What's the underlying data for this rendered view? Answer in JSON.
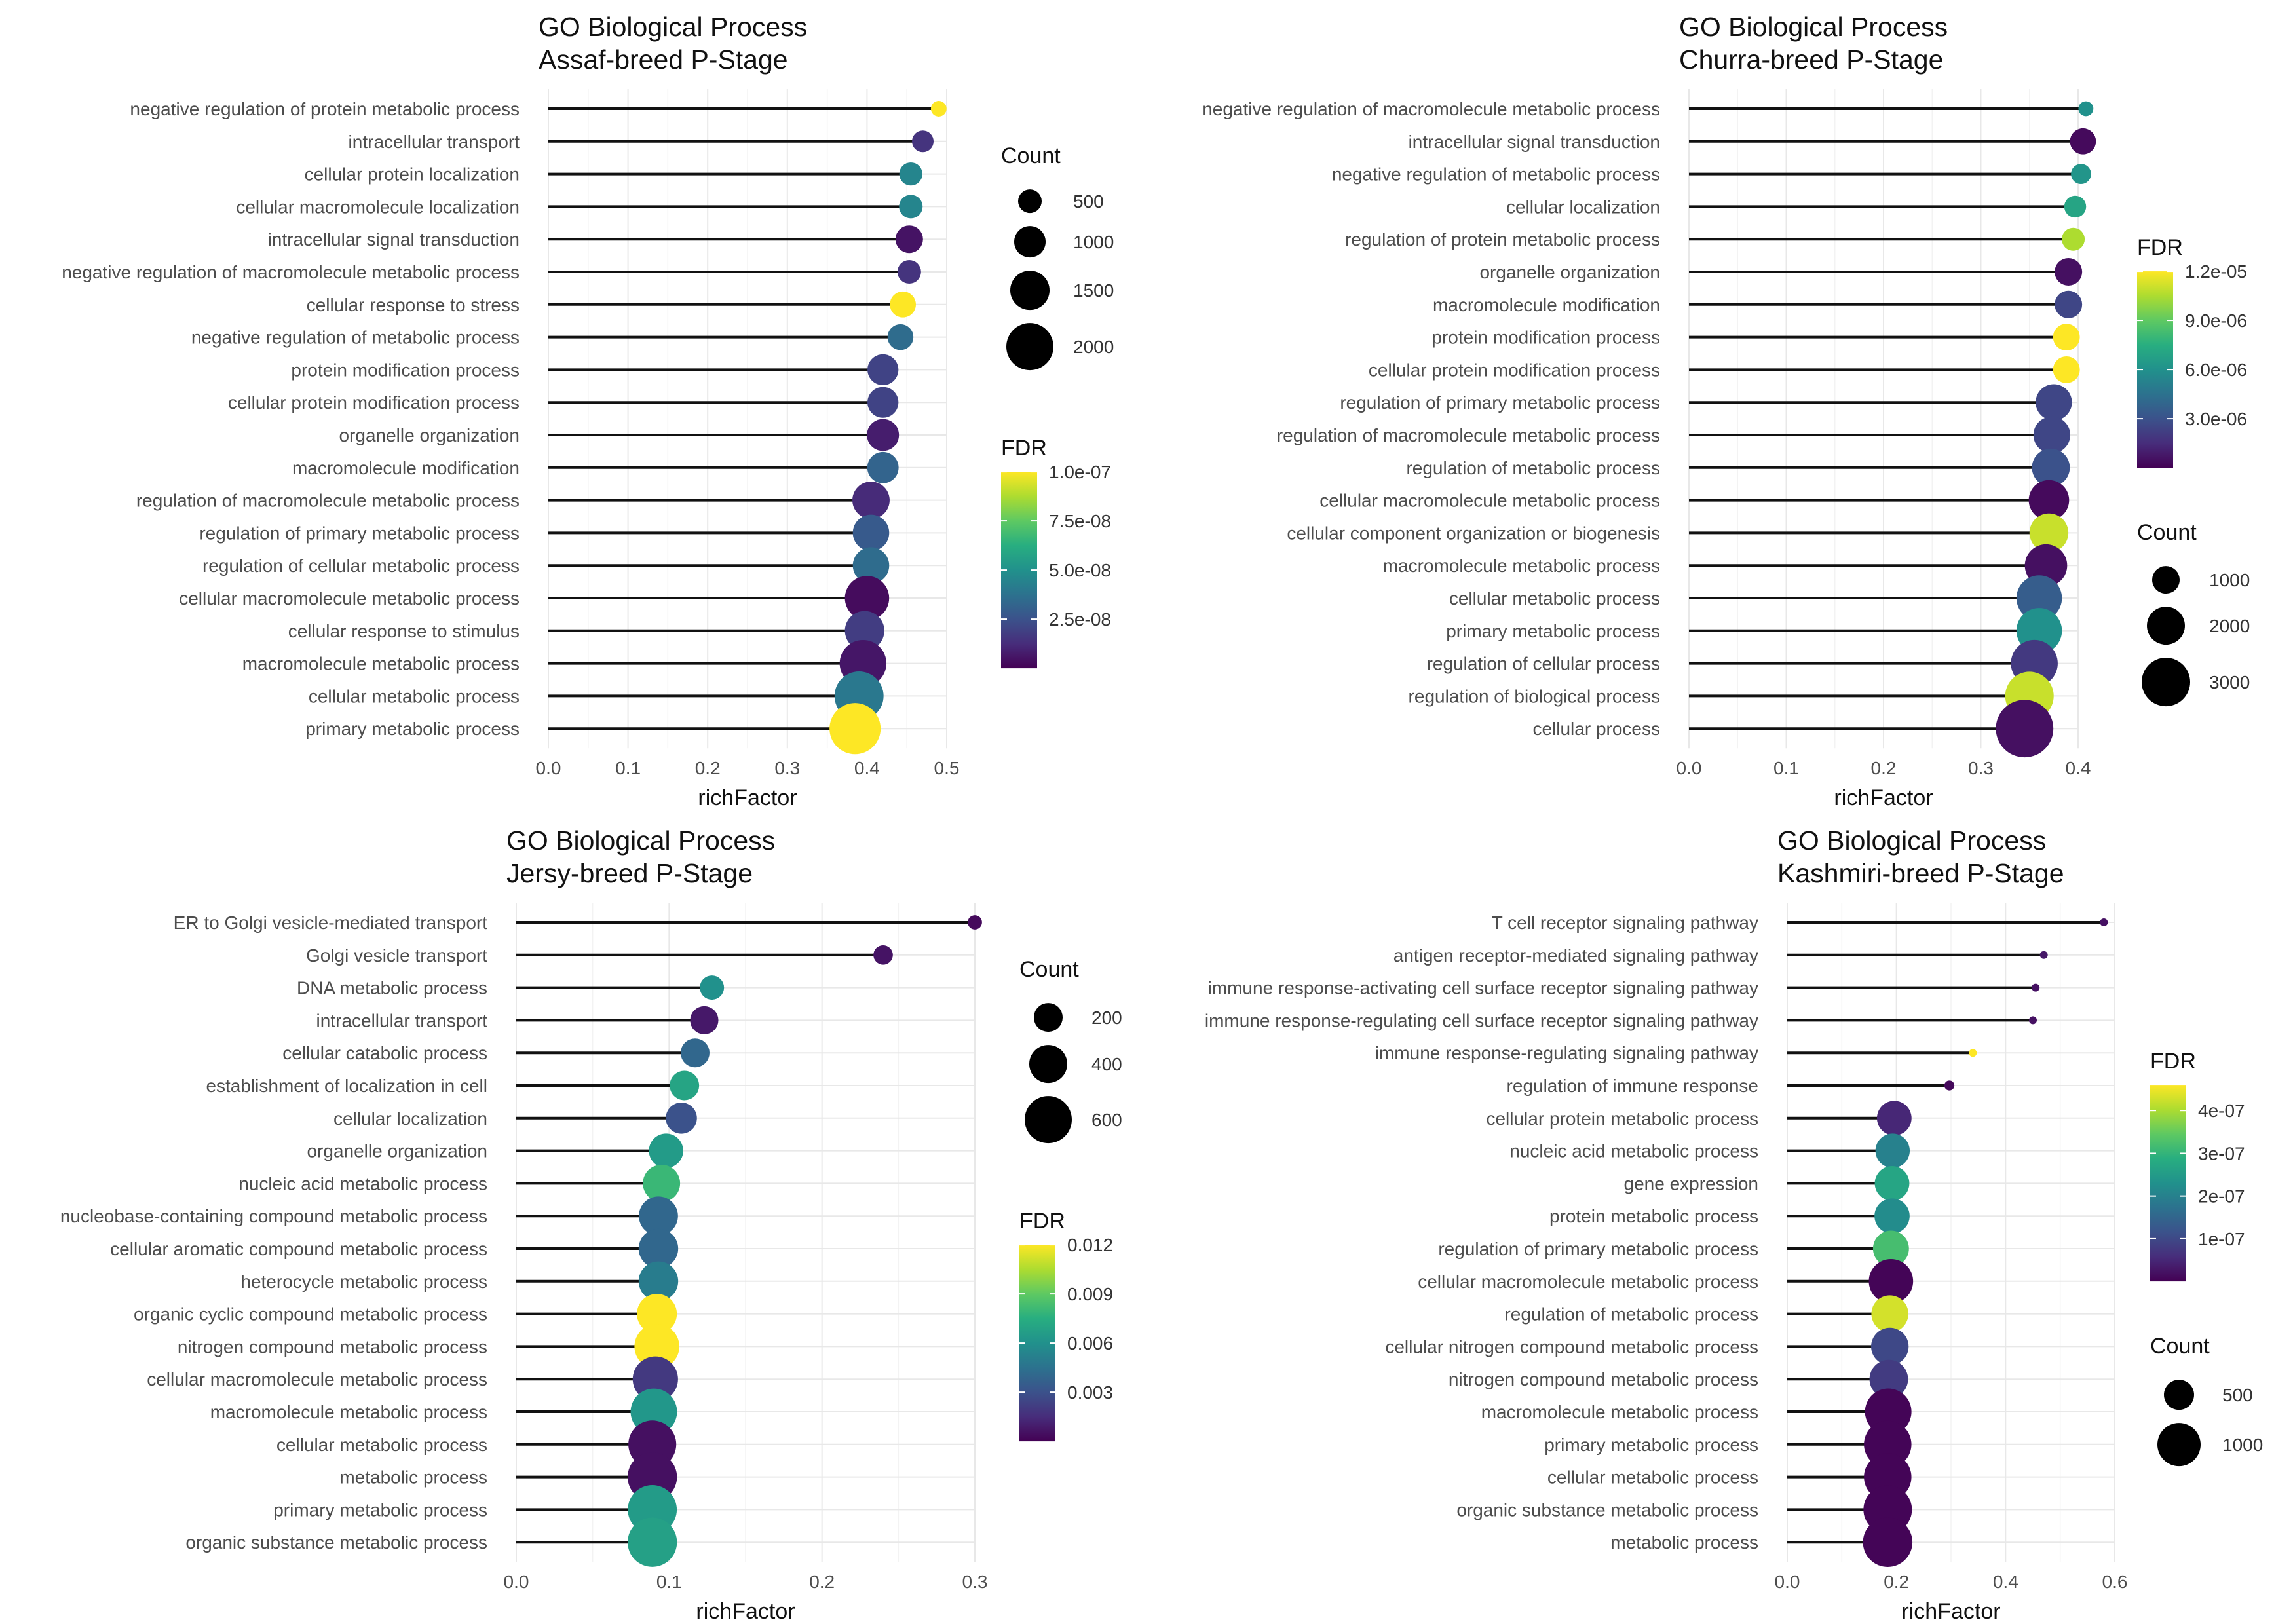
{
  "figure": {
    "panels_label": "GO enrichment lollipop charts"
  },
  "chart_data": [
    {
      "type": "scatter",
      "subtype": "lollipop",
      "title": "GO Biological Process",
      "subtitle": "Assaf-breed P-Stage",
      "xlabel": "richFactor",
      "ylabel": "",
      "xlim": [
        0,
        0.5
      ],
      "xticks": [
        "0.0",
        "0.1",
        "0.2",
        "0.3",
        "0.4",
        "0.5"
      ],
      "legend_order": "count-first",
      "count_legend": {
        "title": "Count",
        "values": [
          500,
          1000,
          1500,
          2000
        ],
        "labels": [
          "500",
          "1000",
          "1500",
          "2000"
        ]
      },
      "fdr_legend": {
        "title": "FDR",
        "min": 0,
        "max": 1e-07,
        "ticks": [
          2.5e-08,
          5e-08,
          7.5e-08,
          1e-07
        ],
        "labels": [
          "2.5e-08",
          "5.0e-08",
          "7.5e-08",
          "1.0e-07"
        ]
      },
      "terms": [
        {
          "term": "negative regulation of protein metabolic process",
          "richFactor": 0.49,
          "count": 220,
          "fdr": 1e-07
        },
        {
          "term": "intracellular transport",
          "richFactor": 0.47,
          "count": 420,
          "fdr": 1.5e-08
        },
        {
          "term": "cellular protein localization",
          "richFactor": 0.455,
          "count": 480,
          "fdr": 4.5e-08
        },
        {
          "term": "cellular macromolecule localization",
          "richFactor": 0.455,
          "count": 500,
          "fdr": 4.5e-08
        },
        {
          "term": "intracellular signal transduction",
          "richFactor": 0.453,
          "count": 680,
          "fdr": 5e-09
        },
        {
          "term": "negative regulation of macromolecule metabolic process",
          "richFactor": 0.453,
          "count": 500,
          "fdr": 1.5e-08
        },
        {
          "term": "cellular response to stress",
          "richFactor": 0.445,
          "count": 610,
          "fdr": 1e-07
        },
        {
          "term": "negative regulation of metabolic process",
          "richFactor": 0.442,
          "count": 600,
          "fdr": 3.5e-08
        },
        {
          "term": "protein modification process",
          "richFactor": 0.42,
          "count": 860,
          "fdr": 2e-08
        },
        {
          "term": "cellular protein modification process",
          "richFactor": 0.42,
          "count": 860,
          "fdr": 2e-08
        },
        {
          "term": "organelle organization",
          "richFactor": 0.42,
          "count": 920,
          "fdr": 8e-09
        },
        {
          "term": "macromolecule modification",
          "richFactor": 0.42,
          "count": 880,
          "fdr": 3.2e-08
        },
        {
          "term": "regulation of macromolecule metabolic process",
          "richFactor": 0.405,
          "count": 1250,
          "fdr": 1.2e-08
        },
        {
          "term": "regulation of primary metabolic process",
          "richFactor": 0.405,
          "count": 1190,
          "fdr": 2.8e-08
        },
        {
          "term": "regulation of cellular metabolic process",
          "richFactor": 0.405,
          "count": 1190,
          "fdr": 3.5e-08
        },
        {
          "term": "cellular macromolecule metabolic process",
          "richFactor": 0.4,
          "count": 1760,
          "fdr": 3e-09
        },
        {
          "term": "cellular response to stimulus",
          "richFactor": 0.397,
          "count": 1400,
          "fdr": 1.8e-08
        },
        {
          "term": "macromolecule metabolic process",
          "richFactor": 0.395,
          "count": 1960,
          "fdr": 6e-09
        },
        {
          "term": "cellular metabolic process",
          "richFactor": 0.39,
          "count": 2160,
          "fdr": 4e-08
        },
        {
          "term": "primary metabolic process",
          "richFactor": 0.385,
          "count": 2350,
          "fdr": 1e-07
        }
      ]
    },
    {
      "type": "scatter",
      "subtype": "lollipop",
      "title": "GO Biological Process",
      "subtitle": "Churra-breed P-Stage",
      "xlabel": "richFactor",
      "ylabel": "",
      "xlim": [
        0,
        0.4
      ],
      "xticks": [
        "0.0",
        "0.1",
        "0.2",
        "0.3",
        "0.4"
      ],
      "legend_order": "fdr-first",
      "count_legend": {
        "title": "Count",
        "values": [
          1000,
          2000,
          3000
        ],
        "labels": [
          "1000",
          "2000",
          "3000"
        ]
      },
      "fdr_legend": {
        "title": "FDR",
        "min": 0,
        "max": 1.2e-05,
        "ticks": [
          3e-06,
          6e-06,
          9e-06,
          1.2e-05
        ],
        "labels": [
          "3.0e-06",
          "6.0e-06",
          "9.0e-06",
          "1.2e-05"
        ]
      },
      "terms": [
        {
          "term": "negative regulation of macromolecule metabolic process",
          "richFactor": 0.408,
          "count": 330,
          "fdr": 6e-06
        },
        {
          "term": "intracellular signal transduction",
          "richFactor": 0.405,
          "count": 900,
          "fdr": 3e-07
        },
        {
          "term": "negative regulation of metabolic process",
          "richFactor": 0.403,
          "count": 560,
          "fdr": 6.2e-06
        },
        {
          "term": "cellular localization",
          "richFactor": 0.397,
          "count": 650,
          "fdr": 7e-06
        },
        {
          "term": "regulation of protein metabolic process",
          "richFactor": 0.395,
          "count": 710,
          "fdr": 1.05e-05
        },
        {
          "term": "organelle organization",
          "richFactor": 0.39,
          "count": 1000,
          "fdr": 5e-07
        },
        {
          "term": "macromolecule modification",
          "richFactor": 0.39,
          "count": 1000,
          "fdr": 2.5e-06
        },
        {
          "term": "protein modification process",
          "richFactor": 0.388,
          "count": 950,
          "fdr": 1.2e-05
        },
        {
          "term": "cellular protein modification process",
          "richFactor": 0.388,
          "count": 950,
          "fdr": 1.2e-05
        },
        {
          "term": "regulation of primary metabolic process",
          "richFactor": 0.375,
          "count": 1700,
          "fdr": 2.5e-06
        },
        {
          "term": "regulation of macromolecule metabolic process",
          "richFactor": 0.373,
          "count": 1750,
          "fdr": 2.5e-06
        },
        {
          "term": "regulation of metabolic process",
          "richFactor": 0.372,
          "count": 1850,
          "fdr": 3e-06
        },
        {
          "term": "cellular macromolecule metabolic process",
          "richFactor": 0.37,
          "count": 2100,
          "fdr": 3e-07
        },
        {
          "term": "cellular component organization or biogenesis",
          "richFactor": 0.37,
          "count": 1950,
          "fdr": 1.1e-05
        },
        {
          "term": "macromolecule metabolic process",
          "richFactor": 0.367,
          "count": 2300,
          "fdr": 5e-07
        },
        {
          "term": "cellular metabolic process",
          "richFactor": 0.36,
          "count": 2650,
          "fdr": 3.5e-06
        },
        {
          "term": "primary metabolic process",
          "richFactor": 0.36,
          "count": 2650,
          "fdr": 6e-06
        },
        {
          "term": "regulation of cellular process",
          "richFactor": 0.355,
          "count": 2800,
          "fdr": 2e-06
        },
        {
          "term": "regulation of biological process",
          "richFactor": 0.35,
          "count": 3000,
          "fdr": 1.1e-05
        },
        {
          "term": "cellular process",
          "richFactor": 0.345,
          "count": 4200,
          "fdr": 5e-07
        }
      ]
    },
    {
      "type": "scatter",
      "subtype": "lollipop",
      "title": "GO Biological Process",
      "subtitle": "Jersy-breed P-Stage",
      "xlabel": "richFactor",
      "ylabel": "",
      "xlim": [
        0,
        0.3
      ],
      "xticks": [
        "0.0",
        "0.1",
        "0.2",
        "0.3"
      ],
      "legend_order": "count-first",
      "count_legend": {
        "title": "Count",
        "values": [
          200,
          400,
          600
        ],
        "labels": [
          "200",
          "400",
          "600"
        ]
      },
      "fdr_legend": {
        "title": "FDR",
        "min": 0,
        "max": 0.012,
        "ticks": [
          0.003,
          0.006,
          0.009,
          0.012
        ],
        "labels": [
          "0.003",
          "0.006",
          "0.009",
          "0.012"
        ]
      },
      "terms": [
        {
          "term": "ER to Golgi vesicle-mediated transport",
          "richFactor": 0.3,
          "count": 20,
          "fdr": 0.0003
        },
        {
          "term": "Golgi vesicle transport",
          "richFactor": 0.24,
          "count": 70,
          "fdr": 0.0006
        },
        {
          "term": "DNA metabolic process",
          "richFactor": 0.128,
          "count": 130,
          "fdr": 0.006
        },
        {
          "term": "intracellular transport",
          "richFactor": 0.123,
          "count": 190,
          "fdr": 0.0008
        },
        {
          "term": "cellular catabolic process",
          "richFactor": 0.117,
          "count": 200,
          "fdr": 0.004
        },
        {
          "term": "establishment of localization in cell",
          "richFactor": 0.11,
          "count": 210,
          "fdr": 0.007
        },
        {
          "term": "cellular localization",
          "richFactor": 0.108,
          "count": 240,
          "fdr": 0.003
        },
        {
          "term": "organelle organization",
          "richFactor": 0.098,
          "count": 300,
          "fdr": 0.0065
        },
        {
          "term": "nucleic acid metabolic process",
          "richFactor": 0.095,
          "count": 360,
          "fdr": 0.008
        },
        {
          "term": "nucleobase-containing compound metabolic process",
          "richFactor": 0.093,
          "count": 400,
          "fdr": 0.004
        },
        {
          "term": "cellular aromatic compound metabolic process",
          "richFactor": 0.093,
          "count": 410,
          "fdr": 0.004
        },
        {
          "term": "heterocycle metabolic process",
          "richFactor": 0.093,
          "count": 410,
          "fdr": 0.005
        },
        {
          "term": "organic cyclic compound metabolic process",
          "richFactor": 0.092,
          "count": 420,
          "fdr": 0.012
        },
        {
          "term": "nitrogen compound metabolic process",
          "richFactor": 0.092,
          "count": 540,
          "fdr": 0.012
        },
        {
          "term": "cellular macromolecule metabolic process",
          "richFactor": 0.091,
          "count": 550,
          "fdr": 0.002
        },
        {
          "term": "macromolecule metabolic process",
          "richFactor": 0.09,
          "count": 580,
          "fdr": 0.0063
        },
        {
          "term": "cellular metabolic process",
          "richFactor": 0.089,
          "count": 620,
          "fdr": 0.0005
        },
        {
          "term": "metabolic process",
          "richFactor": 0.089,
          "count": 660,
          "fdr": 0.0005
        },
        {
          "term": "primary metabolic process",
          "richFactor": 0.089,
          "count": 650,
          "fdr": 0.0065
        },
        {
          "term": "organic substance metabolic process",
          "richFactor": 0.089,
          "count": 660,
          "fdr": 0.0068
        }
      ]
    },
    {
      "type": "scatter",
      "subtype": "lollipop",
      "title": "GO Biological Process",
      "subtitle": "Kashmiri-breed P-Stage",
      "xlabel": "richFactor",
      "ylabel": "",
      "xlim": [
        0,
        0.6
      ],
      "xticks": [
        "0.0",
        "0.2",
        "0.4",
        "0.6"
      ],
      "legend_order": "fdr-first",
      "count_legend": {
        "title": "Count",
        "values": [
          500,
          1000
        ],
        "labels": [
          "500",
          "1000"
        ]
      },
      "fdr_legend": {
        "title": "FDR",
        "min": 0,
        "max": 4.6e-07,
        "ticks": [
          1e-07,
          2e-07,
          3e-07,
          4e-07
        ],
        "labels": [
          "1e-07",
          "2e-07",
          "3e-07",
          "4e-07"
        ]
      },
      "terms": [
        {
          "term": "T cell receptor signaling pathway",
          "richFactor": 0.58,
          "count": 15,
          "fdr": 2e-08
        },
        {
          "term": "antigen receptor-mediated signaling pathway",
          "richFactor": 0.47,
          "count": 25,
          "fdr": 3e-08
        },
        {
          "term": "immune response-activating cell surface receptor signaling pathway",
          "richFactor": 0.455,
          "count": 30,
          "fdr": 2e-08
        },
        {
          "term": "immune response-regulating cell surface receptor signaling pathway",
          "richFactor": 0.45,
          "count": 30,
          "fdr": 2e-08
        },
        {
          "term": "immune response-regulating signaling pathway",
          "richFactor": 0.34,
          "count": 50,
          "fdr": 4.6e-07
        },
        {
          "term": "regulation of immune response",
          "richFactor": 0.297,
          "count": 80,
          "fdr": 1e-08
        },
        {
          "term": "cellular protein metabolic process",
          "richFactor": 0.196,
          "count": 650,
          "fdr": 5e-08
        },
        {
          "term": "nucleic acid metabolic process",
          "richFactor": 0.193,
          "count": 640,
          "fdr": 2e-07
        },
        {
          "term": "gene expression",
          "richFactor": 0.192,
          "count": 650,
          "fdr": 2.7e-07
        },
        {
          "term": "protein metabolic process",
          "richFactor": 0.192,
          "count": 670,
          "fdr": 2.2e-07
        },
        {
          "term": "regulation of primary metabolic process",
          "richFactor": 0.19,
          "count": 700,
          "fdr": 3.2e-07
        },
        {
          "term": "cellular macromolecule metabolic process",
          "richFactor": 0.19,
          "count": 1050,
          "fdr": 5e-09
        },
        {
          "term": "regulation of metabolic process",
          "richFactor": 0.188,
          "count": 740,
          "fdr": 4.3e-07
        },
        {
          "term": "cellular nitrogen compound metabolic process",
          "richFactor": 0.188,
          "count": 760,
          "fdr": 1e-07
        },
        {
          "term": "nitrogen compound metabolic process",
          "richFactor": 0.186,
          "count": 800,
          "fdr": 8e-08
        },
        {
          "term": "macromolecule metabolic process",
          "richFactor": 0.185,
          "count": 1150,
          "fdr": 5e-09
        },
        {
          "term": "primary metabolic process",
          "richFactor": 0.184,
          "count": 1200,
          "fdr": 5e-09
        },
        {
          "term": "cellular metabolic process",
          "richFactor": 0.184,
          "count": 1200,
          "fdr": 5e-09
        },
        {
          "term": "organic substance metabolic process",
          "richFactor": 0.184,
          "count": 1250,
          "fdr": 5e-09
        },
        {
          "term": "metabolic process",
          "richFactor": 0.184,
          "count": 1300,
          "fdr": 5e-09
        }
      ]
    }
  ]
}
